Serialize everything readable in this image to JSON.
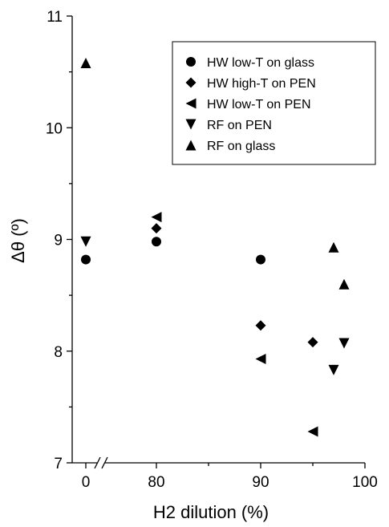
{
  "chart_data": {
    "type": "scatter",
    "xlabel": "H2 dilution (%)",
    "ylabel": "Δθ (º)",
    "x_ticks": [
      "0",
      "80",
      "90",
      "100"
    ],
    "y_ticks": [
      "7",
      "8",
      "9",
      "10",
      "11"
    ],
    "ylim": [
      7,
      11
    ],
    "x_axis_break": "between 0 and 80",
    "grid": false,
    "legend_position": "top-right",
    "series": [
      {
        "name": "HW low-T on glass",
        "marker": "circle",
        "points": [
          {
            "x": 0,
            "y": 8.82
          },
          {
            "x": 80,
            "y": 8.98
          },
          {
            "x": 90,
            "y": 8.82
          }
        ]
      },
      {
        "name": "HW high-T on PEN",
        "marker": "diamond",
        "points": [
          {
            "x": 80,
            "y": 9.1
          },
          {
            "x": 90,
            "y": 8.23
          },
          {
            "x": 95,
            "y": 8.08
          }
        ]
      },
      {
        "name": "HW low-T on PEN",
        "marker": "triangle-left",
        "points": [
          {
            "x": 80,
            "y": 9.2
          },
          {
            "x": 90,
            "y": 7.93
          },
          {
            "x": 95,
            "y": 7.28
          }
        ]
      },
      {
        "name": "RF on PEN",
        "marker": "triangle-down",
        "points": [
          {
            "x": 0,
            "y": 8.98
          },
          {
            "x": 97,
            "y": 7.83
          },
          {
            "x": 98,
            "y": 8.07
          }
        ]
      },
      {
        "name": "RF on glass",
        "marker": "triangle-up",
        "points": [
          {
            "x": 0,
            "y": 10.58
          },
          {
            "x": 97,
            "y": 8.93
          },
          {
            "x": 98,
            "y": 8.6
          }
        ]
      }
    ],
    "color": "#000000"
  }
}
